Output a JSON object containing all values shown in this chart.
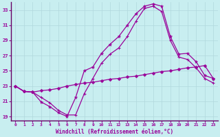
{
  "xlabel": "Windchill (Refroidissement éolien,°C)",
  "xlim": [
    -0.5,
    23.5
  ],
  "ylim": [
    18.5,
    34.0
  ],
  "yticks": [
    19,
    21,
    23,
    25,
    27,
    29,
    31,
    33
  ],
  "xticks": [
    0,
    1,
    2,
    3,
    4,
    5,
    6,
    7,
    8,
    9,
    10,
    11,
    12,
    13,
    14,
    15,
    16,
    17,
    18,
    19,
    20,
    21,
    22,
    23
  ],
  "bg_color": "#c8eef0",
  "line_color": "#990099",
  "grid_color": "#b0d8dc",
  "spine_color": "#660066",
  "series1_x": [
    0,
    1,
    2,
    3,
    4,
    5,
    6,
    7,
    8,
    9,
    10,
    11,
    12,
    13,
    14,
    15,
    16,
    17,
    18,
    19,
    20,
    21,
    22,
    23
  ],
  "series1_y": [
    23.0,
    22.3,
    22.2,
    22.4,
    22.5,
    22.7,
    23.0,
    23.2,
    23.4,
    23.5,
    23.7,
    23.9,
    24.0,
    24.2,
    24.3,
    24.5,
    24.7,
    24.9,
    25.0,
    25.2,
    25.4,
    25.5,
    25.7,
    24.0
  ],
  "series2_x": [
    0,
    1,
    2,
    3,
    4,
    5,
    6,
    7,
    8,
    9,
    10,
    11,
    12,
    13,
    14,
    15,
    16,
    17,
    18,
    19,
    20,
    21,
    22,
    23
  ],
  "series2_y": [
    23.0,
    22.3,
    22.2,
    20.9,
    20.3,
    19.5,
    19.0,
    21.5,
    25.0,
    25.5,
    27.3,
    28.5,
    29.5,
    31.0,
    32.5,
    33.5,
    33.8,
    33.5,
    29.5,
    27.2,
    27.3,
    26.2,
    24.4,
    24.0
  ],
  "series3_x": [
    0,
    1,
    2,
    3,
    4,
    5,
    6,
    7,
    8,
    9,
    10,
    11,
    12,
    13,
    14,
    15,
    16,
    17,
    18,
    19,
    20,
    21,
    22,
    23
  ],
  "series3_y": [
    23.0,
    22.3,
    22.2,
    21.5,
    20.8,
    19.8,
    19.2,
    19.2,
    22.0,
    24.0,
    26.0,
    27.2,
    28.0,
    29.5,
    31.5,
    33.2,
    33.5,
    32.8,
    29.0,
    26.8,
    26.5,
    25.4,
    24.0,
    23.4
  ]
}
